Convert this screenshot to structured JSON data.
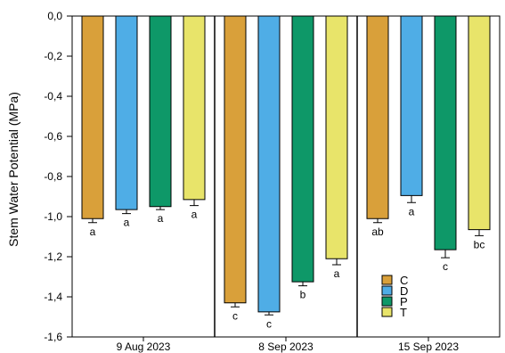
{
  "chart_data": {
    "type": "bar",
    "ylabel": "Stem Water Potential (MPa)",
    "xlabel": "",
    "ylim": [
      -1.6,
      0.0
    ],
    "yticks": [
      "0,0",
      "-0,2",
      "-0,4",
      "-0,6",
      "-0,8",
      "-1,0",
      "-1,2",
      "-1,4",
      "-1,6"
    ],
    "categories": [
      "9 Aug 2023",
      "8 Sep 2023",
      "15 Sep 2023"
    ],
    "series": [
      {
        "name": "C",
        "color": "#D9A03A",
        "values": [
          -1.01,
          -1.43,
          -1.01
        ],
        "errors": [
          0.02,
          0.02,
          0.02
        ],
        "letters": [
          "a",
          "c",
          "ab"
        ]
      },
      {
        "name": "D",
        "color": "#4FADE6",
        "values": [
          -0.965,
          -1.475,
          -0.895
        ],
        "errors": [
          0.02,
          0.015,
          0.035
        ],
        "letters": [
          "a",
          "c",
          "a"
        ]
      },
      {
        "name": "P",
        "color": "#0E9868",
        "values": [
          -0.95,
          -1.325,
          -1.165
        ],
        "errors": [
          0.015,
          0.02,
          0.04
        ],
        "letters": [
          "a",
          "b",
          "c"
        ]
      },
      {
        "name": "T",
        "color": "#E8E46A",
        "values": [
          -0.915,
          -1.21,
          -1.065
        ],
        "errors": [
          0.03,
          0.03,
          0.03
        ],
        "letters": [
          "a",
          "a",
          "bc"
        ]
      }
    ],
    "legend_position": "bottom-right of third panel",
    "grid": false
  }
}
